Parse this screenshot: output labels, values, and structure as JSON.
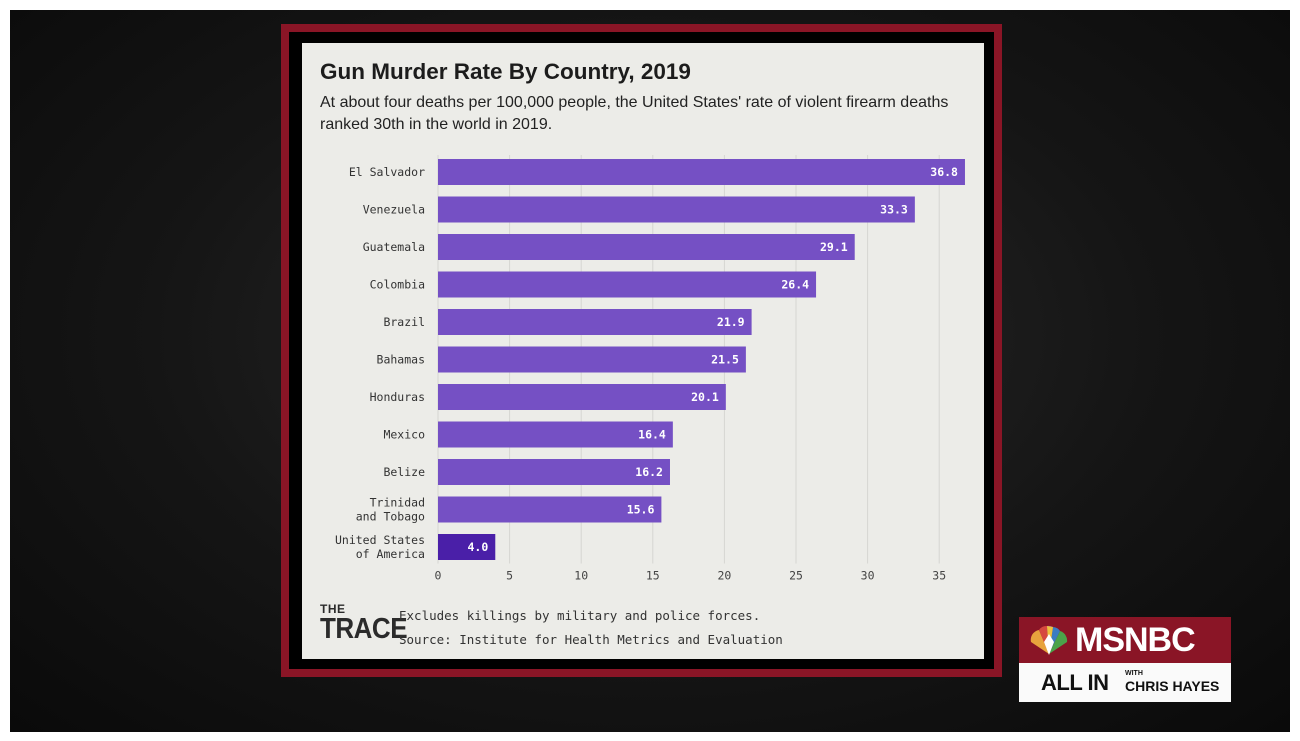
{
  "chart_data": {
    "type": "bar",
    "orientation": "horizontal",
    "title": "Gun Murder Rate By Country, 2019",
    "subtitle": "At about four deaths per 100,000 people, the United States' rate of violent firearm deaths ranked 30th in the world in 2019.",
    "categories": [
      "El Salvador",
      "Venezuela",
      "Guatemala",
      "Colombia",
      "Brazil",
      "Bahamas",
      "Honduras",
      "Mexico",
      "Belize",
      "Trinidad and Tobago",
      "United States of America"
    ],
    "category_lines": [
      [
        "El Salvador"
      ],
      [
        "Venezuela"
      ],
      [
        "Guatemala"
      ],
      [
        "Colombia"
      ],
      [
        "Brazil"
      ],
      [
        "Bahamas"
      ],
      [
        "Honduras"
      ],
      [
        "Mexico"
      ],
      [
        "Belize"
      ],
      [
        "Trinidad",
        "and Tobago"
      ],
      [
        "United States",
        "of America"
      ]
    ],
    "values": [
      36.8,
      33.3,
      29.1,
      26.4,
      21.9,
      21.5,
      20.1,
      16.4,
      16.2,
      15.6,
      4.0
    ],
    "value_labels": [
      "36.8",
      "33.3",
      "29.1",
      "26.4",
      "21.9",
      "21.5",
      "20.1",
      "16.4",
      "16.2",
      "15.6",
      "4.0"
    ],
    "xticks": [
      "0",
      "5",
      "10",
      "15",
      "20",
      "25",
      "30",
      "35"
    ],
    "xlim": [
      0,
      37.5
    ],
    "grid": "vertical",
    "bar_color": "#7550c4",
    "highlight_color": "#4a1fa8",
    "highlight_category": "United States of America"
  },
  "footer": {
    "logo_top": "THE",
    "logo_bottom": "TRACE",
    "note": "Excludes killings by military and police forces.",
    "source": "Source: Institute for Health Metrics and Evaluation"
  },
  "broadcast": {
    "network": "MSNBC",
    "show": "ALL IN",
    "with": "WITH",
    "host": "CHRIS HAYES",
    "accent": "#8a1526"
  }
}
